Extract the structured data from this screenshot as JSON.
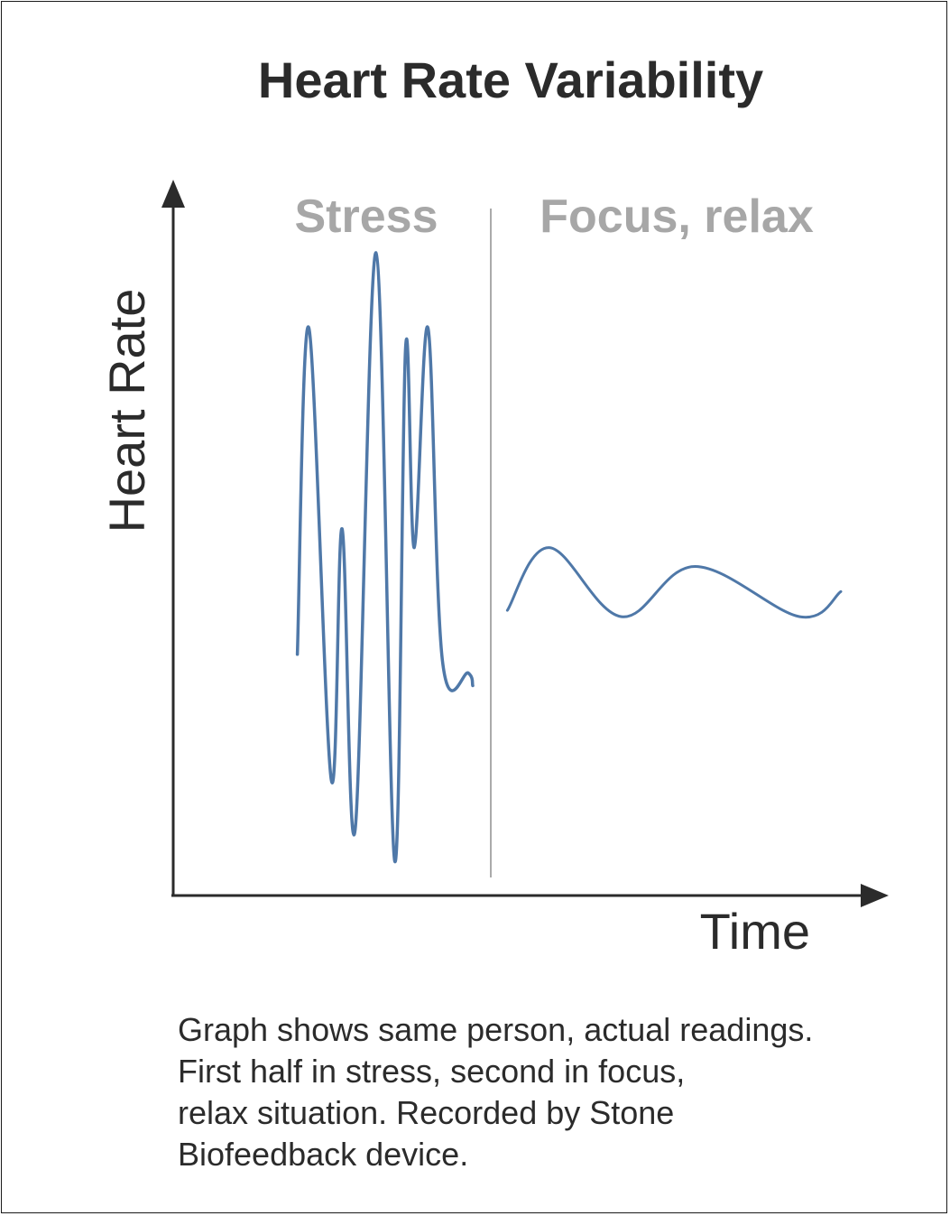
{
  "chart_data": {
    "type": "line",
    "title": "Heart Rate Variability",
    "xlabel": "Time",
    "ylabel": "Heart Rate",
    "xlim": [
      0,
      100
    ],
    "ylim": [
      0,
      100
    ],
    "grid": false,
    "axes_style": "arrows",
    "line_color": "#4f78a8",
    "divider_color": "#aaaaaa",
    "region_label_color": "#a7a7a7",
    "regions": [
      {
        "label": "Stress",
        "x_start": 17,
        "x_end": 44
      },
      {
        "label": "Focus, relax",
        "x_start": 44,
        "x_end": 93
      }
    ],
    "divider_x": 44,
    "series": [
      {
        "x": [
          17.2,
          18.8,
          21.9,
          23.4,
          25.2,
          28.1,
          30.7,
          32.2,
          33.4,
          35.3,
          37.3,
          40.9,
          41.5
        ],
        "values": [
          36,
          88,
          16,
          56,
          8,
          100,
          3,
          85,
          53,
          88,
          35,
          33,
          31
        ]
      },
      {
        "x": [
          46.3,
          52.1,
          62.1,
          72.3,
          86.8,
          92.5
        ],
        "values": [
          43,
          53,
          42,
          50,
          42,
          46
        ]
      }
    ]
  },
  "caption": {
    "lines": [
      "Graph shows same person, actual readings.",
      "First half in stress, second in focus,",
      "relax situation. Recorded by Stone",
      "Biofeedback device."
    ]
  }
}
